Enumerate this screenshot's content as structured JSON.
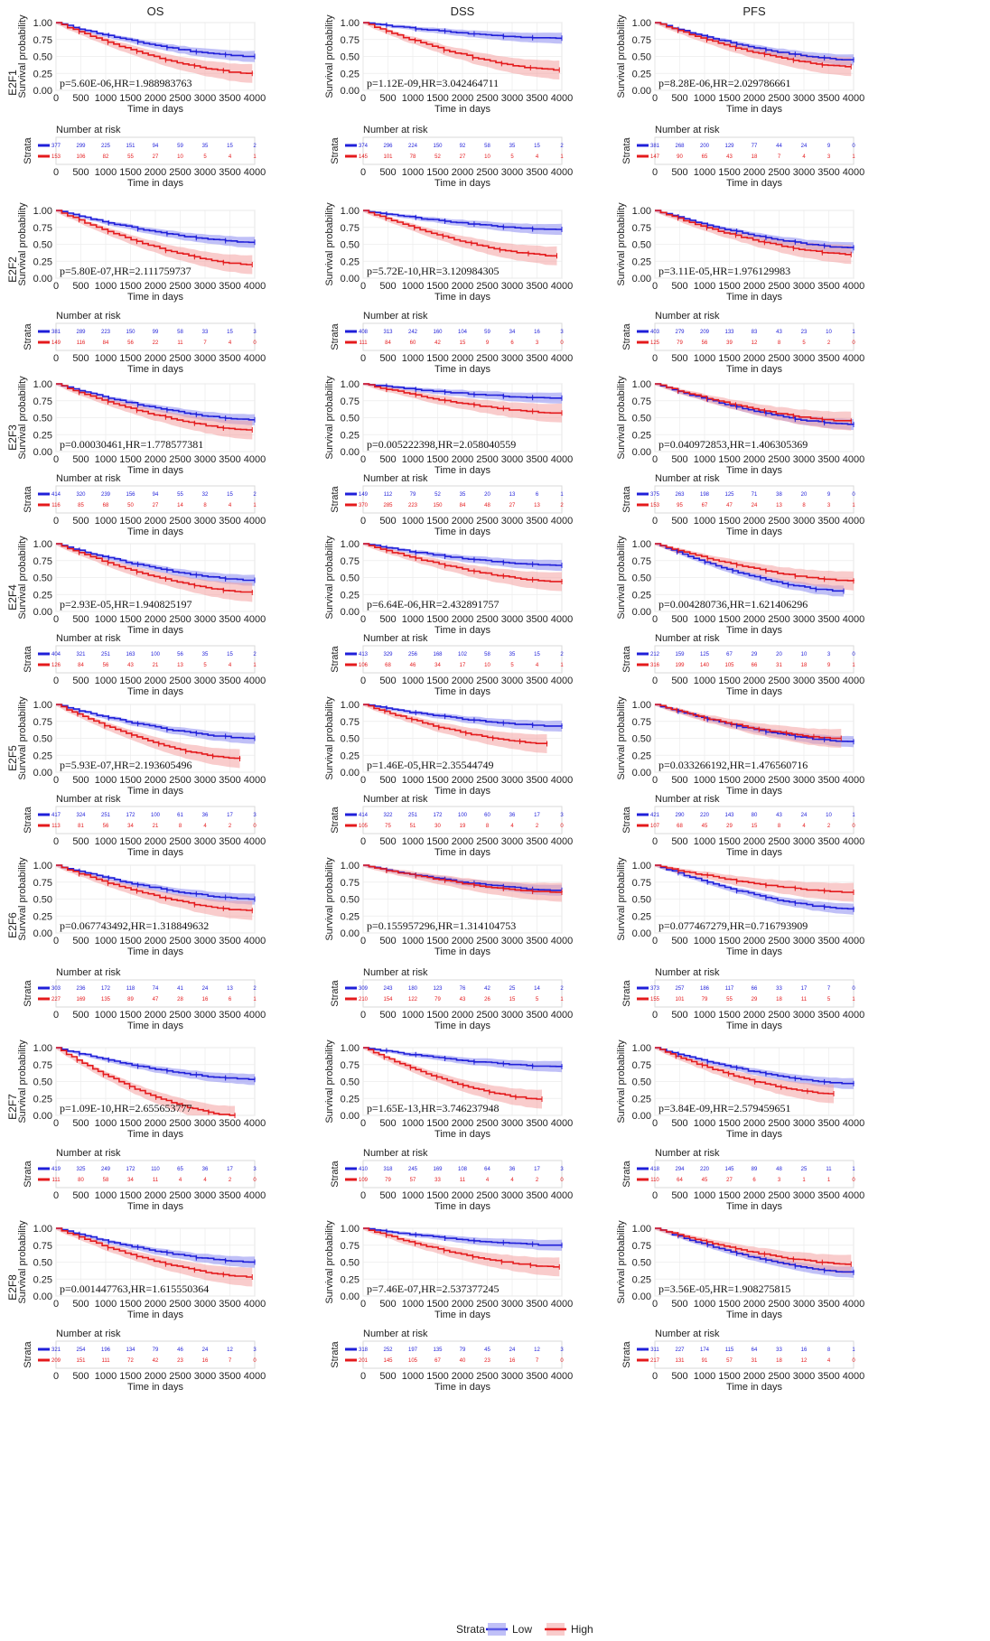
{
  "columns": [
    "OS",
    "DSS",
    "PFS"
  ],
  "y_axis_label": "Survival probability",
  "x_axis_label": "Time in days",
  "risk_title": "Number at risk",
  "risk_axis_label": "Strata",
  "y_ticks": [
    "0.00",
    "0.25",
    "0.50",
    "0.75",
    "1.00"
  ],
  "x_ticks": [
    "0",
    "500",
    "1000",
    "1500",
    "2000",
    "2500",
    "3000",
    "3500",
    "4000"
  ],
  "legend": {
    "title": "Strata",
    "low_label": "Low",
    "high_label": "High"
  },
  "colors": {
    "low": "#1f1fd9",
    "high": "#e41a1c",
    "low_band": "#8c8cf0",
    "high_band": "#f4a3a3",
    "grid": "#ececec"
  },
  "chart_data": {
    "type": "line",
    "x_range": [
      0,
      4000
    ],
    "y_range": [
      0,
      1
    ],
    "risk_times": [
      0,
      500,
      1000,
      1500,
      2000,
      2500,
      3000,
      3500,
      4000
    ],
    "rows": [
      {
        "gene": "E2F1",
        "panels": [
          {
            "endpoint": "OS",
            "annotation": "p=5.60E-06,HR=1.988983763",
            "low_end": 0.5,
            "high_end": 0.25,
            "low_max": 4000,
            "high_max": 3950,
            "risk_low": [
              377,
              299,
              225,
              151,
              94,
              59,
              35,
              15,
              2
            ],
            "risk_high": [
              153,
              106,
              82,
              55,
              27,
              10,
              5,
              4,
              1
            ]
          },
          {
            "endpoint": "DSS",
            "annotation": "p=1.12E-09,HR=3.042464711",
            "low_end": 0.77,
            "high_end": 0.3,
            "low_max": 4000,
            "high_max": 3950,
            "risk_low": [
              374,
              296,
              224,
              150,
              92,
              58,
              35,
              15,
              2
            ],
            "risk_high": [
              145,
              101,
              78,
              52,
              27,
              10,
              5,
              4,
              1
            ]
          },
          {
            "endpoint": "PFS",
            "annotation": "p=8.28E-06,HR=2.029786661",
            "low_end": 0.45,
            "high_end": 0.35,
            "low_max": 4000,
            "high_max": 3950,
            "risk_low": [
              381,
              268,
              200,
              129,
              77,
              44,
              24,
              9,
              0
            ],
            "risk_high": [
              147,
              90,
              65,
              43,
              18,
              7,
              4,
              3,
              1
            ]
          }
        ]
      },
      {
        "gene": "E2F2",
        "panels": [
          {
            "endpoint": "OS",
            "annotation": "p=5.80E-07,HR=2.111759737",
            "low_end": 0.53,
            "high_end": 0.2,
            "low_max": 4000,
            "high_max": 3950,
            "risk_low": [
              381,
              289,
              223,
              150,
              99,
              58,
              33,
              15,
              3
            ],
            "risk_high": [
              149,
              116,
              84,
              56,
              22,
              11,
              7,
              4,
              0
            ]
          },
          {
            "endpoint": "DSS",
            "annotation": "p=5.72E-10,HR=3.120984305",
            "low_end": 0.72,
            "high_end": 0.33,
            "low_max": 4000,
            "high_max": 3900,
            "risk_low": [
              408,
              313,
              242,
              160,
              104,
              59,
              34,
              16,
              3
            ],
            "risk_high": [
              111,
              84,
              60,
              42,
              15,
              9,
              6,
              3,
              0
            ]
          },
          {
            "endpoint": "PFS",
            "annotation": "p=3.11E-05,HR=1.976129983",
            "low_end": 0.45,
            "high_end": 0.35,
            "low_max": 4000,
            "high_max": 3950,
            "risk_low": [
              403,
              279,
              209,
              133,
              83,
              43,
              23,
              10,
              1
            ],
            "risk_high": [
              125,
              79,
              56,
              39,
              12,
              8,
              5,
              2,
              0
            ]
          }
        ]
      },
      {
        "gene": "E2F3",
        "panels": [
          {
            "endpoint": "OS",
            "annotation": "p=0.00030461,HR=1.778577381",
            "low_end": 0.47,
            "high_end": 0.32,
            "low_max": 4000,
            "high_max": 3950,
            "risk_low": [
              414,
              320,
              239,
              156,
              94,
              55,
              32,
              15,
              2
            ],
            "risk_high": [
              116,
              85,
              68,
              50,
              27,
              14,
              8,
              4,
              1
            ]
          },
          {
            "endpoint": "DSS",
            "annotation": "p=0.005222398,HR=2.058040559",
            "low_end": 0.79,
            "high_end": 0.57,
            "low_max": 4000,
            "high_max": 4000,
            "risk_low": [
              149,
              112,
              79,
              52,
              35,
              20,
              13,
              6,
              1
            ],
            "risk_high": [
              370,
              285,
              223,
              150,
              84,
              48,
              27,
              13,
              2
            ]
          },
          {
            "endpoint": "PFS",
            "annotation": "p=0.040972853,HR=1.406305369",
            "low_end": 0.4,
            "high_end": 0.45,
            "low_max": 4000,
            "high_max": 3950,
            "risk_low": [
              375,
              263,
              198,
              125,
              71,
              38,
              20,
              9,
              0
            ],
            "risk_high": [
              153,
              95,
              67,
              47,
              24,
              13,
              8,
              3,
              1
            ]
          }
        ]
      },
      {
        "gene": "E2F4",
        "panels": [
          {
            "endpoint": "OS",
            "annotation": "p=2.93E-05,HR=1.940825197",
            "low_end": 0.46,
            "high_end": 0.28,
            "low_max": 4000,
            "high_max": 3950,
            "risk_low": [
              404,
              321,
              251,
              163,
              100,
              56,
              35,
              15,
              2
            ],
            "risk_high": [
              126,
              84,
              56,
              43,
              21,
              13,
              5,
              4,
              1
            ]
          },
          {
            "endpoint": "DSS",
            "annotation": "p=6.64E-06,HR=2.432891757",
            "low_end": 0.68,
            "high_end": 0.44,
            "low_max": 4000,
            "high_max": 4000,
            "risk_low": [
              413,
              329,
              256,
              168,
              102,
              58,
              35,
              15,
              2
            ],
            "risk_high": [
              106,
              68,
              46,
              34,
              17,
              10,
              5,
              4,
              1
            ]
          },
          {
            "endpoint": "PFS",
            "annotation": "p=0.004280736,HR=1.621406296",
            "low_end": 0.3,
            "high_end": 0.45,
            "low_max": 3800,
            "high_max": 4000,
            "risk_low": [
              212,
              159,
              125,
              67,
              29,
              20,
              10,
              3,
              0
            ],
            "risk_high": [
              316,
              199,
              140,
              105,
              66,
              31,
              18,
              9,
              1
            ]
          }
        ]
      },
      {
        "gene": "E2F5",
        "panels": [
          {
            "endpoint": "OS",
            "annotation": "p=5.93E-07,HR=2.193605496",
            "low_end": 0.5,
            "high_end": 0.2,
            "low_max": 4000,
            "high_max": 3700,
            "risk_low": [
              417,
              324,
              251,
              172,
              100,
              61,
              36,
              17,
              3
            ],
            "risk_high": [
              113,
              81,
              56,
              34,
              21,
              8,
              4,
              2,
              0
            ]
          },
          {
            "endpoint": "DSS",
            "annotation": "p=1.46E-05,HR=2.35544749",
            "low_end": 0.68,
            "high_end": 0.42,
            "low_max": 4000,
            "high_max": 3700,
            "risk_low": [
              414,
              322,
              251,
              172,
              100,
              60,
              36,
              17,
              3
            ],
            "risk_high": [
              105,
              75,
              51,
              30,
              19,
              8,
              4,
              2,
              0
            ]
          },
          {
            "endpoint": "PFS",
            "annotation": "p=0.033266192,HR=1.476560716",
            "low_end": 0.45,
            "high_end": 0.5,
            "low_max": 4000,
            "high_max": 3750,
            "risk_low": [
              421,
              290,
              220,
              143,
              80,
              43,
              24,
              10,
              1
            ],
            "risk_high": [
              107,
              68,
              45,
              29,
              15,
              8,
              4,
              2,
              0
            ]
          }
        ]
      },
      {
        "gene": "E2F6",
        "panels": [
          {
            "endpoint": "OS",
            "annotation": "p=0.067743492,HR=1.318849632",
            "low_end": 0.5,
            "high_end": 0.33,
            "low_max": 4000,
            "high_max": 3950,
            "risk_low": [
              303,
              236,
              172,
              118,
              74,
              41,
              24,
              13,
              2
            ],
            "risk_high": [
              227,
              169,
              135,
              89,
              47,
              28,
              16,
              6,
              1
            ]
          },
          {
            "endpoint": "DSS",
            "annotation": "p=0.155957296,HR=1.314104753",
            "low_end": 0.63,
            "high_end": 0.6,
            "low_max": 4000,
            "high_max": 4000,
            "risk_low": [
              309,
              243,
              180,
              123,
              76,
              42,
              25,
              14,
              2
            ],
            "risk_high": [
              210,
              154,
              122,
              79,
              43,
              26,
              15,
              5,
              1
            ]
          },
          {
            "endpoint": "PFS",
            "annotation": "p=0.077467279,HR=0.716793909",
            "low_end": 0.35,
            "high_end": 0.6,
            "low_max": 4000,
            "high_max": 4000,
            "risk_low": [
              373,
              257,
              186,
              117,
              66,
              33,
              17,
              7,
              0
            ],
            "risk_high": [
              155,
              101,
              79,
              55,
              29,
              18,
              11,
              5,
              1
            ]
          }
        ]
      },
      {
        "gene": "E2F7",
        "panels": [
          {
            "endpoint": "OS",
            "annotation": "p=1.09E-10,HR=2.655653777",
            "low_end": 0.53,
            "high_end": 0.0,
            "low_max": 4000,
            "high_max": 3600,
            "risk_low": [
              419,
              325,
              249,
              172,
              110,
              65,
              36,
              17,
              3
            ],
            "risk_high": [
              111,
              80,
              58,
              34,
              11,
              4,
              4,
              2,
              0
            ]
          },
          {
            "endpoint": "DSS",
            "annotation": "p=1.65E-13,HR=3.746237948",
            "low_end": 0.72,
            "high_end": 0.24,
            "low_max": 4000,
            "high_max": 3600,
            "risk_low": [
              410,
              318,
              245,
              169,
              108,
              64,
              36,
              17,
              3
            ],
            "risk_high": [
              109,
              79,
              57,
              33,
              11,
              4,
              4,
              2,
              0
            ]
          },
          {
            "endpoint": "PFS",
            "annotation": "p=3.84E-09,HR=2.579459651",
            "low_end": 0.47,
            "high_end": 0.32,
            "low_max": 4000,
            "high_max": 3600,
            "risk_low": [
              418,
              294,
              220,
              145,
              89,
              48,
              25,
              11,
              1
            ],
            "risk_high": [
              110,
              64,
              45,
              27,
              6,
              3,
              1,
              1,
              0
            ]
          }
        ]
      },
      {
        "gene": "E2F8",
        "panels": [
          {
            "endpoint": "OS",
            "annotation": "p=0.001447763,HR=1.615550364",
            "low_end": 0.5,
            "high_end": 0.28,
            "low_max": 4000,
            "high_max": 3950,
            "risk_low": [
              321,
              254,
              196,
              134,
              79,
              46,
              24,
              12,
              3
            ],
            "risk_high": [
              209,
              151,
              111,
              72,
              42,
              23,
              16,
              7,
              0
            ]
          },
          {
            "endpoint": "DSS",
            "annotation": "p=7.46E-07,HR=2.537377245",
            "low_end": 0.75,
            "high_end": 0.43,
            "low_max": 4000,
            "high_max": 3950,
            "risk_low": [
              318,
              252,
              197,
              135,
              79,
              45,
              24,
              12,
              3
            ],
            "risk_high": [
              201,
              145,
              105,
              67,
              40,
              23,
              16,
              7,
              0
            ]
          },
          {
            "endpoint": "PFS",
            "annotation": "p=3.56E-05,HR=1.908275815",
            "low_end": 0.35,
            "high_end": 0.47,
            "low_max": 4000,
            "high_max": 3950,
            "risk_low": [
              311,
              227,
              174,
              115,
              64,
              33,
              16,
              8,
              1
            ],
            "risk_high": [
              217,
              131,
              91,
              57,
              31,
              18,
              12,
              4,
              0
            ]
          }
        ]
      }
    ]
  }
}
